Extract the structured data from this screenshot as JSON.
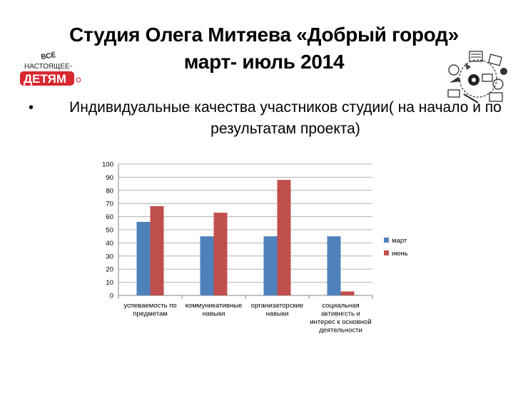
{
  "slide": {
    "title_line1": "Студия Олега Митяева «Добрый город»",
    "title_line2": "март- июль 2014",
    "bullet": "Индивидуальные качества участников студии( на начало и по результатам проекта)",
    "logo_left": "ВСЁ НАСТОЯЩЕЕ- ДЕТЯМ",
    "logo_right_icon": "school-supplies-doodle-icon"
  },
  "colors": {
    "series_mar": "#4f81bd",
    "series_jun": "#c0504d",
    "grid": "#b0b0b0",
    "axis": "#868686",
    "logo_red": "#d9272e"
  },
  "chart_data": {
    "type": "bar",
    "title": "",
    "xlabel": "",
    "ylabel": "",
    "ylim": [
      0,
      100
    ],
    "yticks": [
      0,
      10,
      20,
      30,
      40,
      50,
      60,
      70,
      80,
      90,
      100
    ],
    "grid": true,
    "legend": "right",
    "categories": [
      [
        "успеваемость по",
        "предметам"
      ],
      [
        "коммуникативные",
        "навыки"
      ],
      [
        "организаторские",
        "навыки"
      ],
      [
        "социальная",
        "активнгсть и",
        "интерес к основной",
        "деятельности"
      ]
    ],
    "series": [
      {
        "name": "март",
        "values": [
          56,
          45,
          45,
          45
        ]
      },
      {
        "name": "июнь",
        "values": [
          68,
          63,
          88,
          3
        ]
      }
    ]
  }
}
